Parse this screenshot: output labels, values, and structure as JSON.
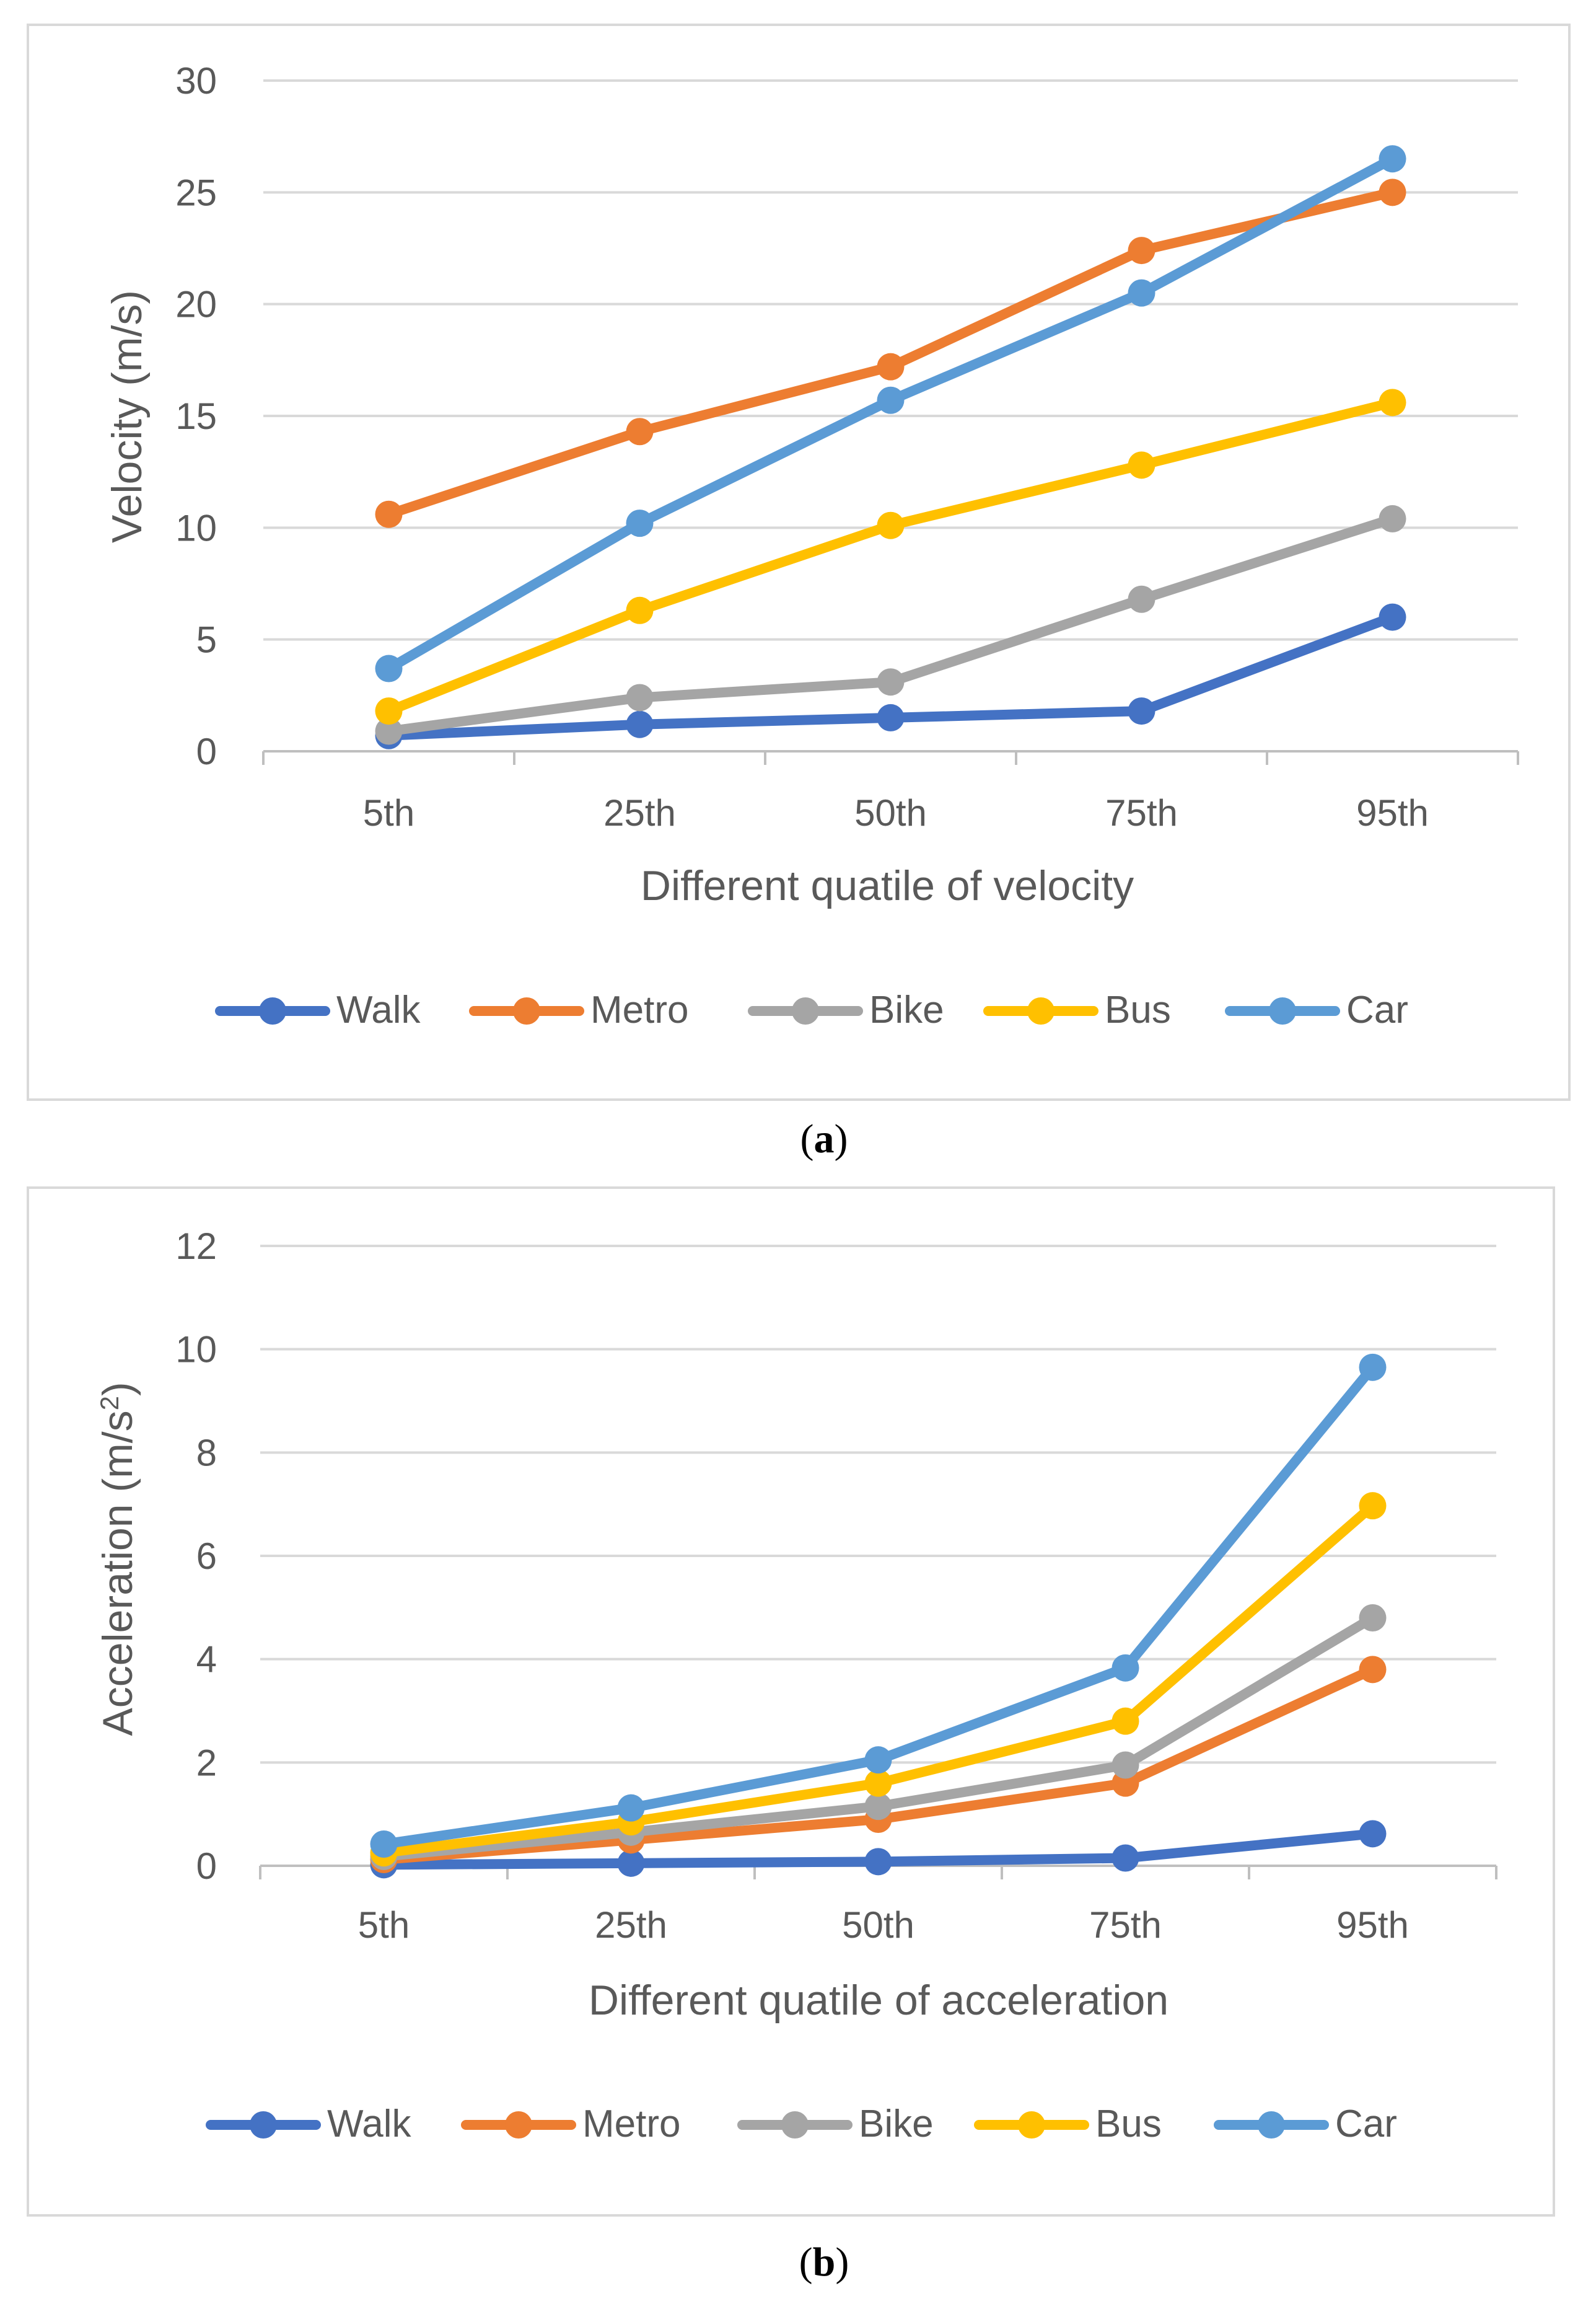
{
  "chart_data": [
    {
      "type": "line",
      "panel_label": "a",
      "xlabel": "Different quatile of velocity",
      "ylabel": "Velocity (m/s)",
      "categories": [
        "5th",
        "25th",
        "50th",
        "75th",
        "95th"
      ],
      "ylim": [
        0,
        30
      ],
      "yticks": [
        0,
        5,
        10,
        15,
        20,
        25,
        30
      ],
      "grid": true,
      "legend": "bottom",
      "series": [
        {
          "name": "Walk",
          "color": "#4472c4",
          "values": [
            0.7,
            1.2,
            1.5,
            1.8,
            6.0
          ]
        },
        {
          "name": "Metro",
          "color": "#ed7d31",
          "values": [
            10.6,
            14.3,
            17.2,
            22.4,
            25.0
          ]
        },
        {
          "name": "Bike",
          "color": "#a5a5a5",
          "values": [
            0.9,
            2.4,
            3.1,
            6.8,
            10.4
          ]
        },
        {
          "name": "Bus",
          "color": "#ffc000",
          "values": [
            1.8,
            6.3,
            10.1,
            12.8,
            15.6
          ]
        },
        {
          "name": "Car",
          "color": "#5b9bd5",
          "values": [
            3.7,
            10.2,
            15.7,
            20.5,
            26.5
          ]
        }
      ]
    },
    {
      "type": "line",
      "panel_label": "b",
      "xlabel": "Different quatile of acceleration",
      "ylabel_main": "Acceleration (m/s",
      "ylabel_sup": "2",
      "ylabel_end": ")",
      "categories": [
        "5th",
        "25th",
        "50th",
        "75th",
        "95th"
      ],
      "ylim": [
        0,
        12
      ],
      "yticks": [
        0,
        2,
        4,
        6,
        8,
        10,
        12
      ],
      "grid": true,
      "legend": "bottom",
      "series": [
        {
          "name": "Walk",
          "color": "#4472c4",
          "values": [
            0.02,
            0.05,
            0.08,
            0.15,
            0.62
          ]
        },
        {
          "name": "Metro",
          "color": "#ed7d31",
          "values": [
            0.12,
            0.5,
            0.9,
            1.6,
            3.8
          ]
        },
        {
          "name": "Bike",
          "color": "#a5a5a5",
          "values": [
            0.18,
            0.65,
            1.15,
            1.95,
            4.8
          ]
        },
        {
          "name": "Bus",
          "color": "#ffc000",
          "values": [
            0.25,
            0.85,
            1.6,
            2.8,
            6.97
          ]
        },
        {
          "name": "Car",
          "color": "#5b9bd5",
          "values": [
            0.42,
            1.12,
            2.05,
            3.83,
            9.65
          ]
        }
      ]
    }
  ]
}
